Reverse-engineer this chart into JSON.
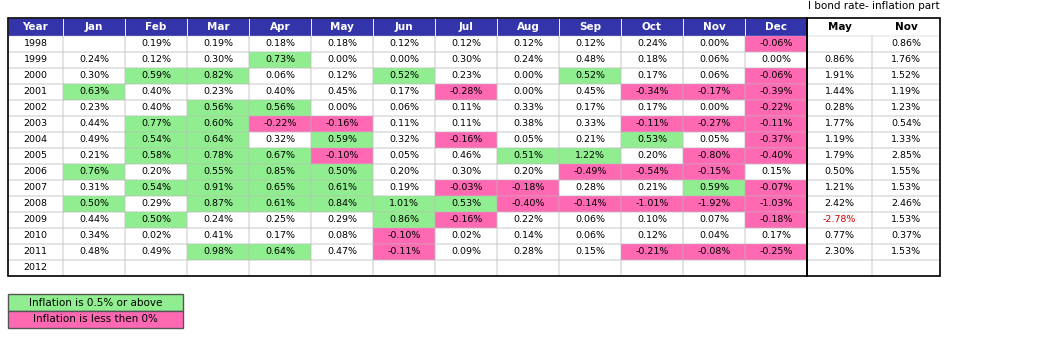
{
  "title": "I bond rate- inflation part",
  "header": [
    "Year",
    "Jan",
    "Feb",
    "Mar",
    "Apr",
    "May",
    "Jun",
    "Jul",
    "Aug",
    "Sep",
    "Oct",
    "Nov",
    "Dec",
    "May",
    "Nov"
  ],
  "header_bg": "#3333aa",
  "header_color": "#ffffff",
  "rows": [
    [
      "1998",
      "",
      "0.19%",
      "0.19%",
      "0.18%",
      "0.18%",
      "0.12%",
      "0.12%",
      "0.12%",
      "0.12%",
      "0.24%",
      "0.00%",
      "-0.06%",
      "",
      "0.86%"
    ],
    [
      "1999",
      "0.24%",
      "0.12%",
      "0.30%",
      "0.73%",
      "0.00%",
      "0.00%",
      "0.30%",
      "0.24%",
      "0.48%",
      "0.18%",
      "0.06%",
      "0.00%",
      "0.86%",
      "1.76%"
    ],
    [
      "2000",
      "0.30%",
      "0.59%",
      "0.82%",
      "0.06%",
      "0.12%",
      "0.52%",
      "0.23%",
      "0.00%",
      "0.52%",
      "0.17%",
      "0.06%",
      "-0.06%",
      "1.91%",
      "1.52%"
    ],
    [
      "2001",
      "0.63%",
      "0.40%",
      "0.23%",
      "0.40%",
      "0.45%",
      "0.17%",
      "-0.28%",
      "0.00%",
      "0.45%",
      "-0.34%",
      "-0.17%",
      "-0.39%",
      "1.44%",
      "1.19%"
    ],
    [
      "2002",
      "0.23%",
      "0.40%",
      "0.56%",
      "0.56%",
      "0.00%",
      "0.06%",
      "0.11%",
      "0.33%",
      "0.17%",
      "0.17%",
      "0.00%",
      "-0.22%",
      "0.28%",
      "1.23%"
    ],
    [
      "2003",
      "0.44%",
      "0.77%",
      "0.60%",
      "-0.22%",
      "-0.16%",
      "0.11%",
      "0.11%",
      "0.38%",
      "0.33%",
      "-0.11%",
      "-0.27%",
      "-0.11%",
      "1.77%",
      "0.54%"
    ],
    [
      "2004",
      "0.49%",
      "0.54%",
      "0.64%",
      "0.32%",
      "0.59%",
      "0.32%",
      "-0.16%",
      "0.05%",
      "0.21%",
      "0.53%",
      "0.05%",
      "-0.37%",
      "1.19%",
      "1.33%"
    ],
    [
      "2005",
      "0.21%",
      "0.58%",
      "0.78%",
      "0.67%",
      "-0.10%",
      "0.05%",
      "0.46%",
      "0.51%",
      "1.22%",
      "0.20%",
      "-0.80%",
      "-0.40%",
      "1.79%",
      "2.85%"
    ],
    [
      "2006",
      "0.76%",
      "0.20%",
      "0.55%",
      "0.85%",
      "0.50%",
      "0.20%",
      "0.30%",
      "0.20%",
      "-0.49%",
      "-0.54%",
      "-0.15%",
      "0.15%",
      "0.50%",
      "1.55%"
    ],
    [
      "2007",
      "0.31%",
      "0.54%",
      "0.91%",
      "0.65%",
      "0.61%",
      "0.19%",
      "-0.03%",
      "-0.18%",
      "0.28%",
      "0.21%",
      "0.59%",
      "-0.07%",
      "1.21%",
      "1.53%"
    ],
    [
      "2008",
      "0.50%",
      "0.29%",
      "0.87%",
      "0.61%",
      "0.84%",
      "1.01%",
      "0.53%",
      "-0.40%",
      "-0.14%",
      "-1.01%",
      "-1.92%",
      "-1.03%",
      "2.42%",
      "2.46%"
    ],
    [
      "2009",
      "0.44%",
      "0.50%",
      "0.24%",
      "0.25%",
      "0.29%",
      "0.86%",
      "-0.16%",
      "0.22%",
      "0.06%",
      "0.10%",
      "0.07%",
      "-0.18%",
      "-2.78%",
      "1.53%"
    ],
    [
      "2010",
      "0.34%",
      "0.02%",
      "0.41%",
      "0.17%",
      "0.08%",
      "-0.10%",
      "0.02%",
      "0.14%",
      "0.06%",
      "0.12%",
      "0.04%",
      "0.17%",
      "0.77%",
      "0.37%"
    ],
    [
      "2011",
      "0.48%",
      "0.49%",
      "0.98%",
      "0.64%",
      "0.47%",
      "-0.11%",
      "0.09%",
      "0.28%",
      "0.15%",
      "-0.21%",
      "-0.08%",
      "-0.25%",
      "2.30%",
      "1.53%"
    ],
    [
      "2012",
      "",
      "",
      "",
      "",
      "",
      "",
      "",
      "",
      "",
      "",
      "",
      "",
      "",
      ""
    ]
  ],
  "values": [
    [
      null,
      0.19,
      0.19,
      0.18,
      0.18,
      0.12,
      0.12,
      0.12,
      0.12,
      0.24,
      0.0,
      -0.06,
      null,
      0.86
    ],
    [
      0.24,
      0.12,
      0.3,
      0.73,
      0.0,
      0.0,
      0.3,
      0.24,
      0.48,
      0.18,
      0.06,
      0.0,
      0.86,
      1.76
    ],
    [
      0.3,
      0.59,
      0.82,
      0.06,
      0.12,
      0.52,
      0.23,
      0.0,
      0.52,
      0.17,
      0.06,
      -0.06,
      1.91,
      1.52
    ],
    [
      0.63,
      0.4,
      0.23,
      0.4,
      0.45,
      0.17,
      -0.28,
      0.0,
      0.45,
      -0.34,
      -0.17,
      -0.39,
      1.44,
      1.19
    ],
    [
      0.23,
      0.4,
      0.56,
      0.56,
      0.0,
      0.06,
      0.11,
      0.33,
      0.17,
      0.17,
      0.0,
      -0.22,
      0.28,
      1.23
    ],
    [
      0.44,
      0.77,
      0.6,
      -0.22,
      -0.16,
      0.11,
      0.11,
      0.38,
      0.33,
      -0.11,
      -0.27,
      -0.11,
      1.77,
      0.54
    ],
    [
      0.49,
      0.54,
      0.64,
      0.32,
      0.59,
      0.32,
      -0.16,
      0.05,
      0.21,
      0.53,
      0.05,
      -0.37,
      1.19,
      1.33
    ],
    [
      0.21,
      0.58,
      0.78,
      0.67,
      -0.1,
      0.05,
      0.46,
      0.51,
      1.22,
      0.2,
      -0.8,
      -0.4,
      1.79,
      2.85
    ],
    [
      0.76,
      0.2,
      0.55,
      0.85,
      0.5,
      0.2,
      0.3,
      0.2,
      -0.49,
      -0.54,
      -0.15,
      0.15,
      0.5,
      1.55
    ],
    [
      0.31,
      0.54,
      0.91,
      0.65,
      0.61,
      0.19,
      -0.03,
      -0.18,
      0.28,
      0.21,
      0.59,
      -0.07,
      1.21,
      1.53
    ],
    [
      0.5,
      0.29,
      0.87,
      0.61,
      0.84,
      1.01,
      0.53,
      -0.4,
      -0.14,
      -1.01,
      -1.92,
      -1.03,
      2.42,
      2.46
    ],
    [
      0.44,
      0.5,
      0.24,
      0.25,
      0.29,
      0.86,
      -0.16,
      0.22,
      0.06,
      0.1,
      0.07,
      -0.18,
      -2.78,
      1.53
    ],
    [
      0.34,
      0.02,
      0.41,
      0.17,
      0.08,
      -0.1,
      0.02,
      0.14,
      0.06,
      0.12,
      0.04,
      0.17,
      0.77,
      0.37
    ],
    [
      0.48,
      0.49,
      0.98,
      0.64,
      0.47,
      -0.11,
      0.09,
      0.28,
      0.15,
      -0.21,
      -0.08,
      -0.25,
      2.3,
      1.53
    ],
    [
      null,
      null,
      null,
      null,
      null,
      null,
      null,
      null,
      null,
      null,
      null,
      null,
      null,
      null
    ]
  ],
  "green_threshold": 0.5,
  "pink_threshold": 0.0,
  "green_color": "#90EE90",
  "pink_color": "#FF69B4",
  "legend_green_label": "Inflation is 0.5% or above",
  "legend_pink_label": "Inflation is less then 0%",
  "special_red_text": "-2.78%",
  "special_red_color": "#CC0000",
  "figsize": [
    10.4,
    3.53
  ],
  "dpi": 100
}
